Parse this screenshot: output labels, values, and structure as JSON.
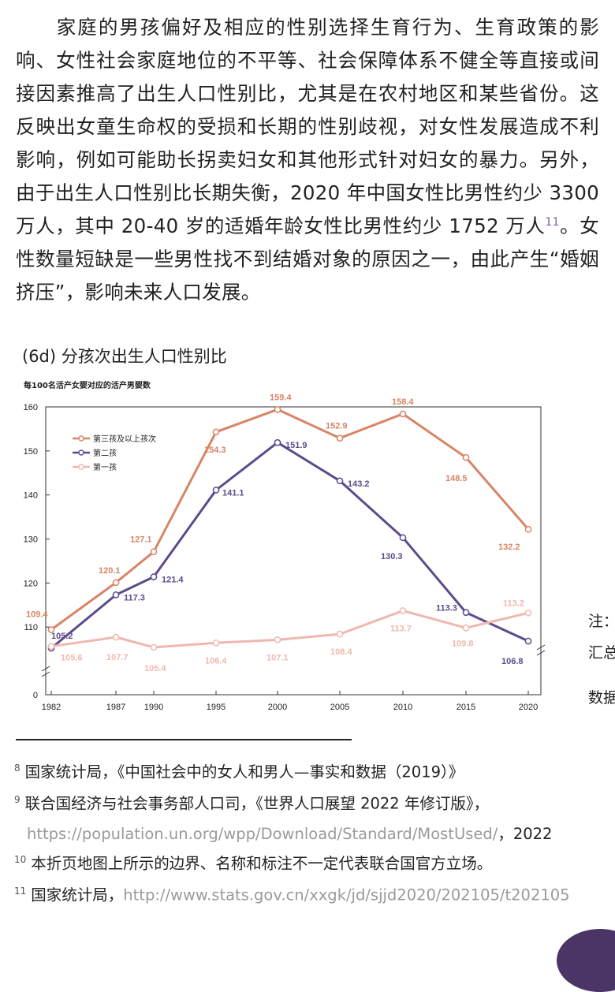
{
  "paragraph": {
    "text_a": "家庭的男孩偏好及相应的性别选择生育行为、生育政策的影响、女性社会家庭地位的不平等、社会保障体系不健全等直接或间接因素推高了出生人口性别比，尤其是在农村地区和某些省份。这反映出女童生命权的受损和长期的性别歧视，对女性发展造成不利影响，例如可能助长拐卖妇女和其他形式针对妇女的暴力。另外，由于出生人口性别比长期失衡，2020 年中国女性比男性约少 3300 万人，其中 20-40 岁的适婚年龄女性比男性约少 1752 万人",
    "footnote_ref": "11",
    "text_b": "。女性数量短缺是一些男性找不到结婚对象的原因之一，由此产生“婚姻挤压”，影响未来人口发展。"
  },
  "figure": {
    "title": "(6d) 分孩次出生人口性别比",
    "y_caption": "每100名活产女婴对应的活产男婴数"
  },
  "chart_data": {
    "type": "line",
    "x": [
      1982,
      1987,
      1990,
      1995,
      2000,
      2005,
      2010,
      2015,
      2020
    ],
    "xticks": [
      "1982",
      "1987",
      "1990",
      "1995",
      "2000",
      "2005",
      "2010",
      "2015",
      "2020"
    ],
    "yticks": [
      "0",
      "110",
      "120",
      "130",
      "140",
      "150",
      "160"
    ],
    "ylim": [
      100,
      160
    ],
    "axis_break": true,
    "grid": false,
    "legend_position": "top-left",
    "series": [
      {
        "name": "第三孩及以上孩次",
        "color": "#d98466",
        "values": [
          109.4,
          120.1,
          127.1,
          154.3,
          159.4,
          152.9,
          158.4,
          148.5,
          132.2
        ],
        "labels": [
          "109.4",
          "120.1",
          "127.1",
          "154.3",
          "159.4",
          "152.9",
          "158.4",
          "148.5",
          "132.2"
        ]
      },
      {
        "name": "第二孩",
        "color": "#5d4a8a",
        "values": [
          105.2,
          117.3,
          121.4,
          141.1,
          151.9,
          143.2,
          130.3,
          113.3,
          106.8
        ],
        "labels": [
          "105.2",
          "117.3",
          "121.4",
          "141.1",
          "151.9",
          "143.2",
          "130.3",
          "113.3",
          "106.8"
        ]
      },
      {
        "name": "第一孩",
        "color": "#efb8ae",
        "values": [
          105.6,
          107.7,
          105.4,
          106.4,
          107.1,
          108.4,
          113.7,
          109.8,
          113.2
        ],
        "labels": [
          "105.6",
          "107.7",
          "105.4",
          "106.4",
          "107.1",
          "108.4",
          "113.7",
          "109.8",
          "113.2"
        ]
      }
    ]
  },
  "side_notes": [
    "注：",
    "汇总",
    "数据"
  ],
  "footnotes": {
    "fn8": {
      "num": "8",
      "text": "国家统计局，《中国社会中的女人和男人—事实和数据（2019）》"
    },
    "fn9": {
      "num": "9",
      "text": "联合国经济与社会事务部人口司，《世界人口展望 2022 年修订版》，",
      "link": "https://population.un.org/wpp/Download/Standard/MostUsed/",
      "tail": "，2022"
    },
    "fn10": {
      "num": "10",
      "text": "本折页地图上所示的边界、名称和标注不一定代表联合国官方立场。"
    },
    "fn11": {
      "num": "11",
      "text": "国家统计局，",
      "link": "http://www.stats.gov.cn/xxgk/jd/sjjd2020/202105/t202105"
    }
  }
}
